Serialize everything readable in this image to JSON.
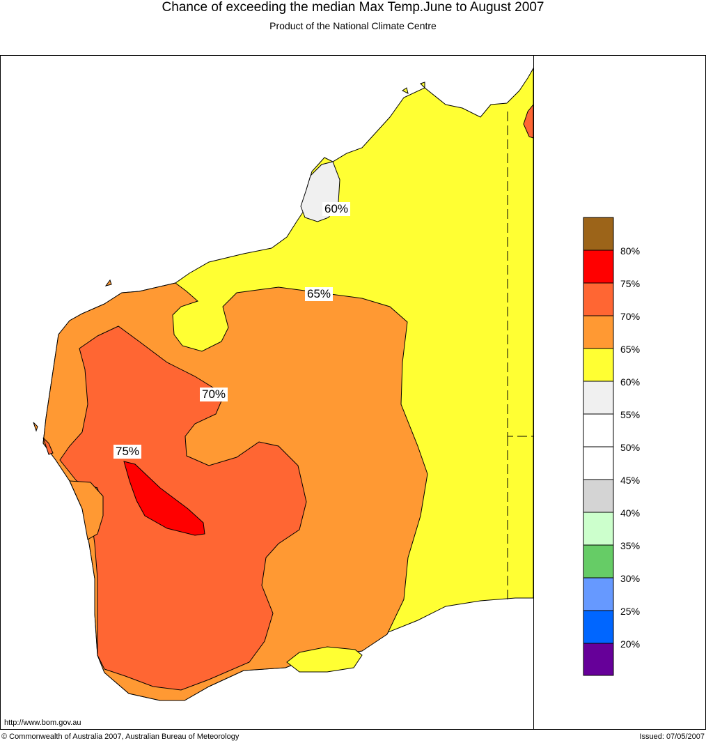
{
  "header": {
    "title": "Chance of exceeding the median Max Temp.June to August 2007",
    "subtitle": "Product of the National Climate Centre"
  },
  "map": {
    "contour_labels": [
      "60%",
      "65%",
      "70%",
      "75%"
    ]
  },
  "legend": {
    "colors": [
      "#9c6419",
      "#ff0000",
      "#ff6633",
      "#ff9933",
      "#ffff33",
      "#f0f0f0",
      "#ffffff",
      "#ffffff",
      "#d4d4d4",
      "#ccffcc",
      "#66cc66",
      "#6699ff",
      "#0066ff",
      "#660099"
    ],
    "labels": [
      "80%",
      "75%",
      "70%",
      "65%",
      "60%",
      "55%",
      "50%",
      "45%",
      "40%",
      "35%",
      "30%",
      "25%",
      "20%"
    ]
  },
  "footer": {
    "url": "http://www.bom.gov.au",
    "copyright": "© Commonwealth of Australia 2007, Australian Bureau of Meteorology",
    "issued": "Issued: 07/05/2007"
  }
}
